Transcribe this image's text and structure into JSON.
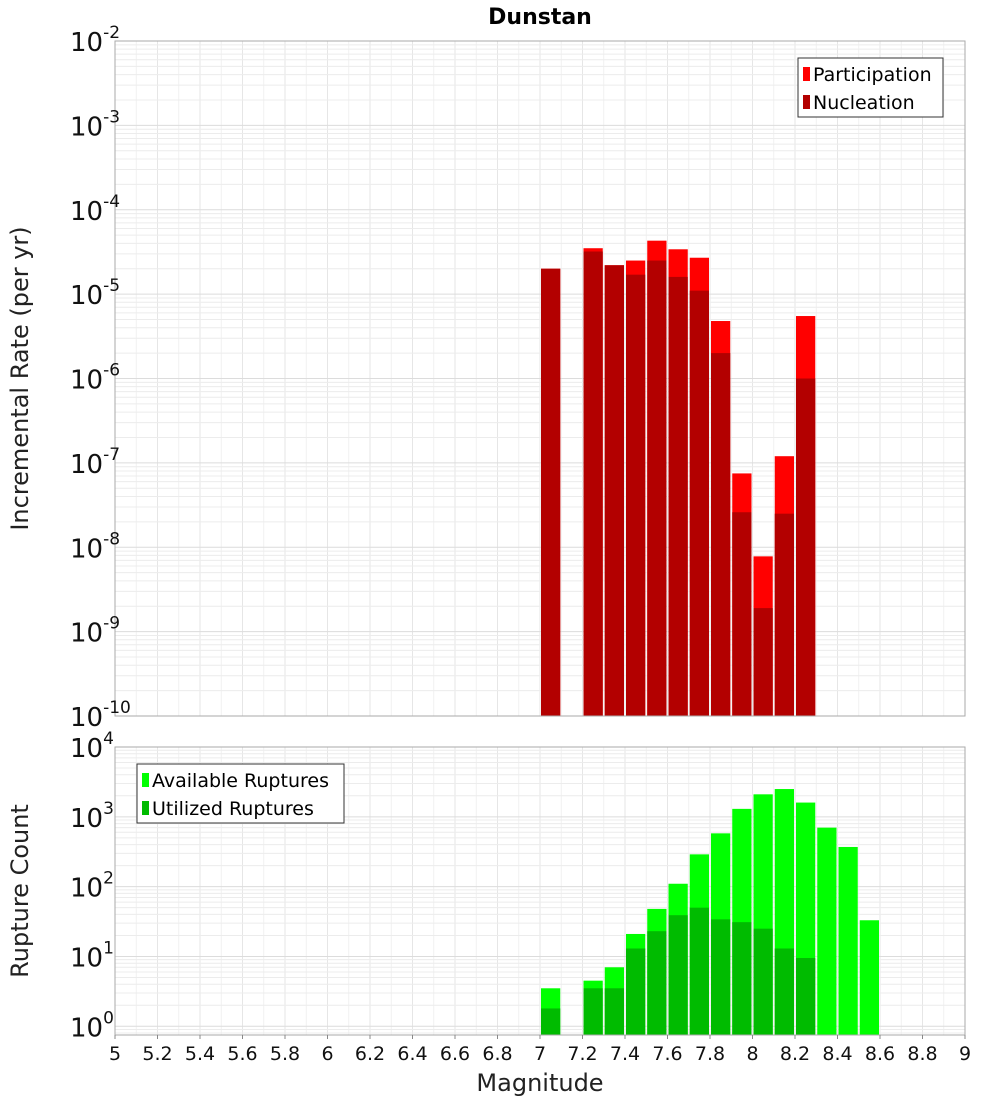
{
  "chart_data": [
    {
      "type": "bar",
      "title": "Dunstan",
      "xlabel": "",
      "ylabel": "Incremental Rate (per yr)",
      "xlim": [
        5,
        9
      ],
      "ylim": [
        1e-10,
        0.01
      ],
      "yscale": "log",
      "bar_width": 0.1,
      "legend_position": "top-right",
      "grid": true,
      "yticks": [
        {
          "base": "10",
          "exp": "-10",
          "value": 1e-10
        },
        {
          "base": "10",
          "exp": "-9",
          "value": 1e-09
        },
        {
          "base": "10",
          "exp": "-8",
          "value": 1e-08
        },
        {
          "base": "10",
          "exp": "-7",
          "value": 1e-07
        },
        {
          "base": "10",
          "exp": "-6",
          "value": 1e-06
        },
        {
          "base": "10",
          "exp": "-5",
          "value": 1e-05
        },
        {
          "base": "10",
          "exp": "-4",
          "value": 0.0001
        },
        {
          "base": "10",
          "exp": "-3",
          "value": 0.001
        },
        {
          "base": "10",
          "exp": "-2",
          "value": 0.01
        }
      ],
      "series": [
        {
          "name": "Participation",
          "color": "#ff0000",
          "x": [
            7.05,
            7.25,
            7.35,
            7.45,
            7.55,
            7.65,
            7.75,
            7.85,
            7.95,
            8.05,
            8.15,
            8.25
          ],
          "values": [
            2e-05,
            3.5e-05,
            2.2e-05,
            2.5e-05,
            4.3e-05,
            3.4e-05,
            2.7e-05,
            4.8e-06,
            7.5e-08,
            7.8e-09,
            1.2e-07,
            5.5e-06
          ]
        },
        {
          "name": "Nucleation",
          "color": "#b30000",
          "x": [
            7.05,
            7.25,
            7.35,
            7.45,
            7.55,
            7.65,
            7.75,
            7.85,
            7.95,
            8.05,
            8.15,
            8.25
          ],
          "values": [
            2e-05,
            3.2e-05,
            2.2e-05,
            1.7e-05,
            2.5e-05,
            1.6e-05,
            1.1e-05,
            2e-06,
            2.6e-08,
            1.9e-09,
            2.5e-08,
            1e-06
          ]
        }
      ]
    },
    {
      "type": "bar",
      "title": "",
      "xlabel": "Magnitude",
      "ylabel": "Rupture Count",
      "xlim": [
        5,
        9
      ],
      "ylim": [
        0.75,
        10000
      ],
      "yscale": "log",
      "bar_width": 0.1,
      "legend_position": "top-left",
      "grid": true,
      "xticks": [
        "5",
        "5.2",
        "5.4",
        "5.6",
        "5.8",
        "6",
        "6.2",
        "6.4",
        "6.6",
        "6.8",
        "7",
        "7.2",
        "7.4",
        "7.6",
        "7.8",
        "8",
        "8.2",
        "8.4",
        "8.6",
        "8.8",
        "9"
      ],
      "yticks": [
        {
          "base": "10",
          "exp": "0",
          "value": 1
        },
        {
          "base": "10",
          "exp": "1",
          "value": 10
        },
        {
          "base": "10",
          "exp": "2",
          "value": 100
        },
        {
          "base": "10",
          "exp": "3",
          "value": 1000
        },
        {
          "base": "10",
          "exp": "4",
          "value": 10000
        }
      ],
      "series": [
        {
          "name": "Available Ruptures",
          "color": "#00ff00",
          "x": [
            7.05,
            7.25,
            7.35,
            7.45,
            7.55,
            7.65,
            7.75,
            7.85,
            7.95,
            8.05,
            8.15,
            8.25,
            8.35,
            8.45,
            8.55
          ],
          "values": [
            3.5,
            4.5,
            7,
            21,
            48,
            110,
            290,
            580,
            1300,
            2100,
            2500,
            1600,
            700,
            370,
            33
          ]
        },
        {
          "name": "Utilized Ruptures",
          "color": "#00bb00",
          "x": [
            7.05,
            7.25,
            7.35,
            7.45,
            7.55,
            7.65,
            7.75,
            7.85,
            7.95,
            8.05,
            8.15,
            8.25
          ],
          "values": [
            1.8,
            3.5,
            3.5,
            13,
            23,
            39,
            50,
            34,
            31,
            25,
            13,
            9.5
          ]
        }
      ]
    }
  ]
}
